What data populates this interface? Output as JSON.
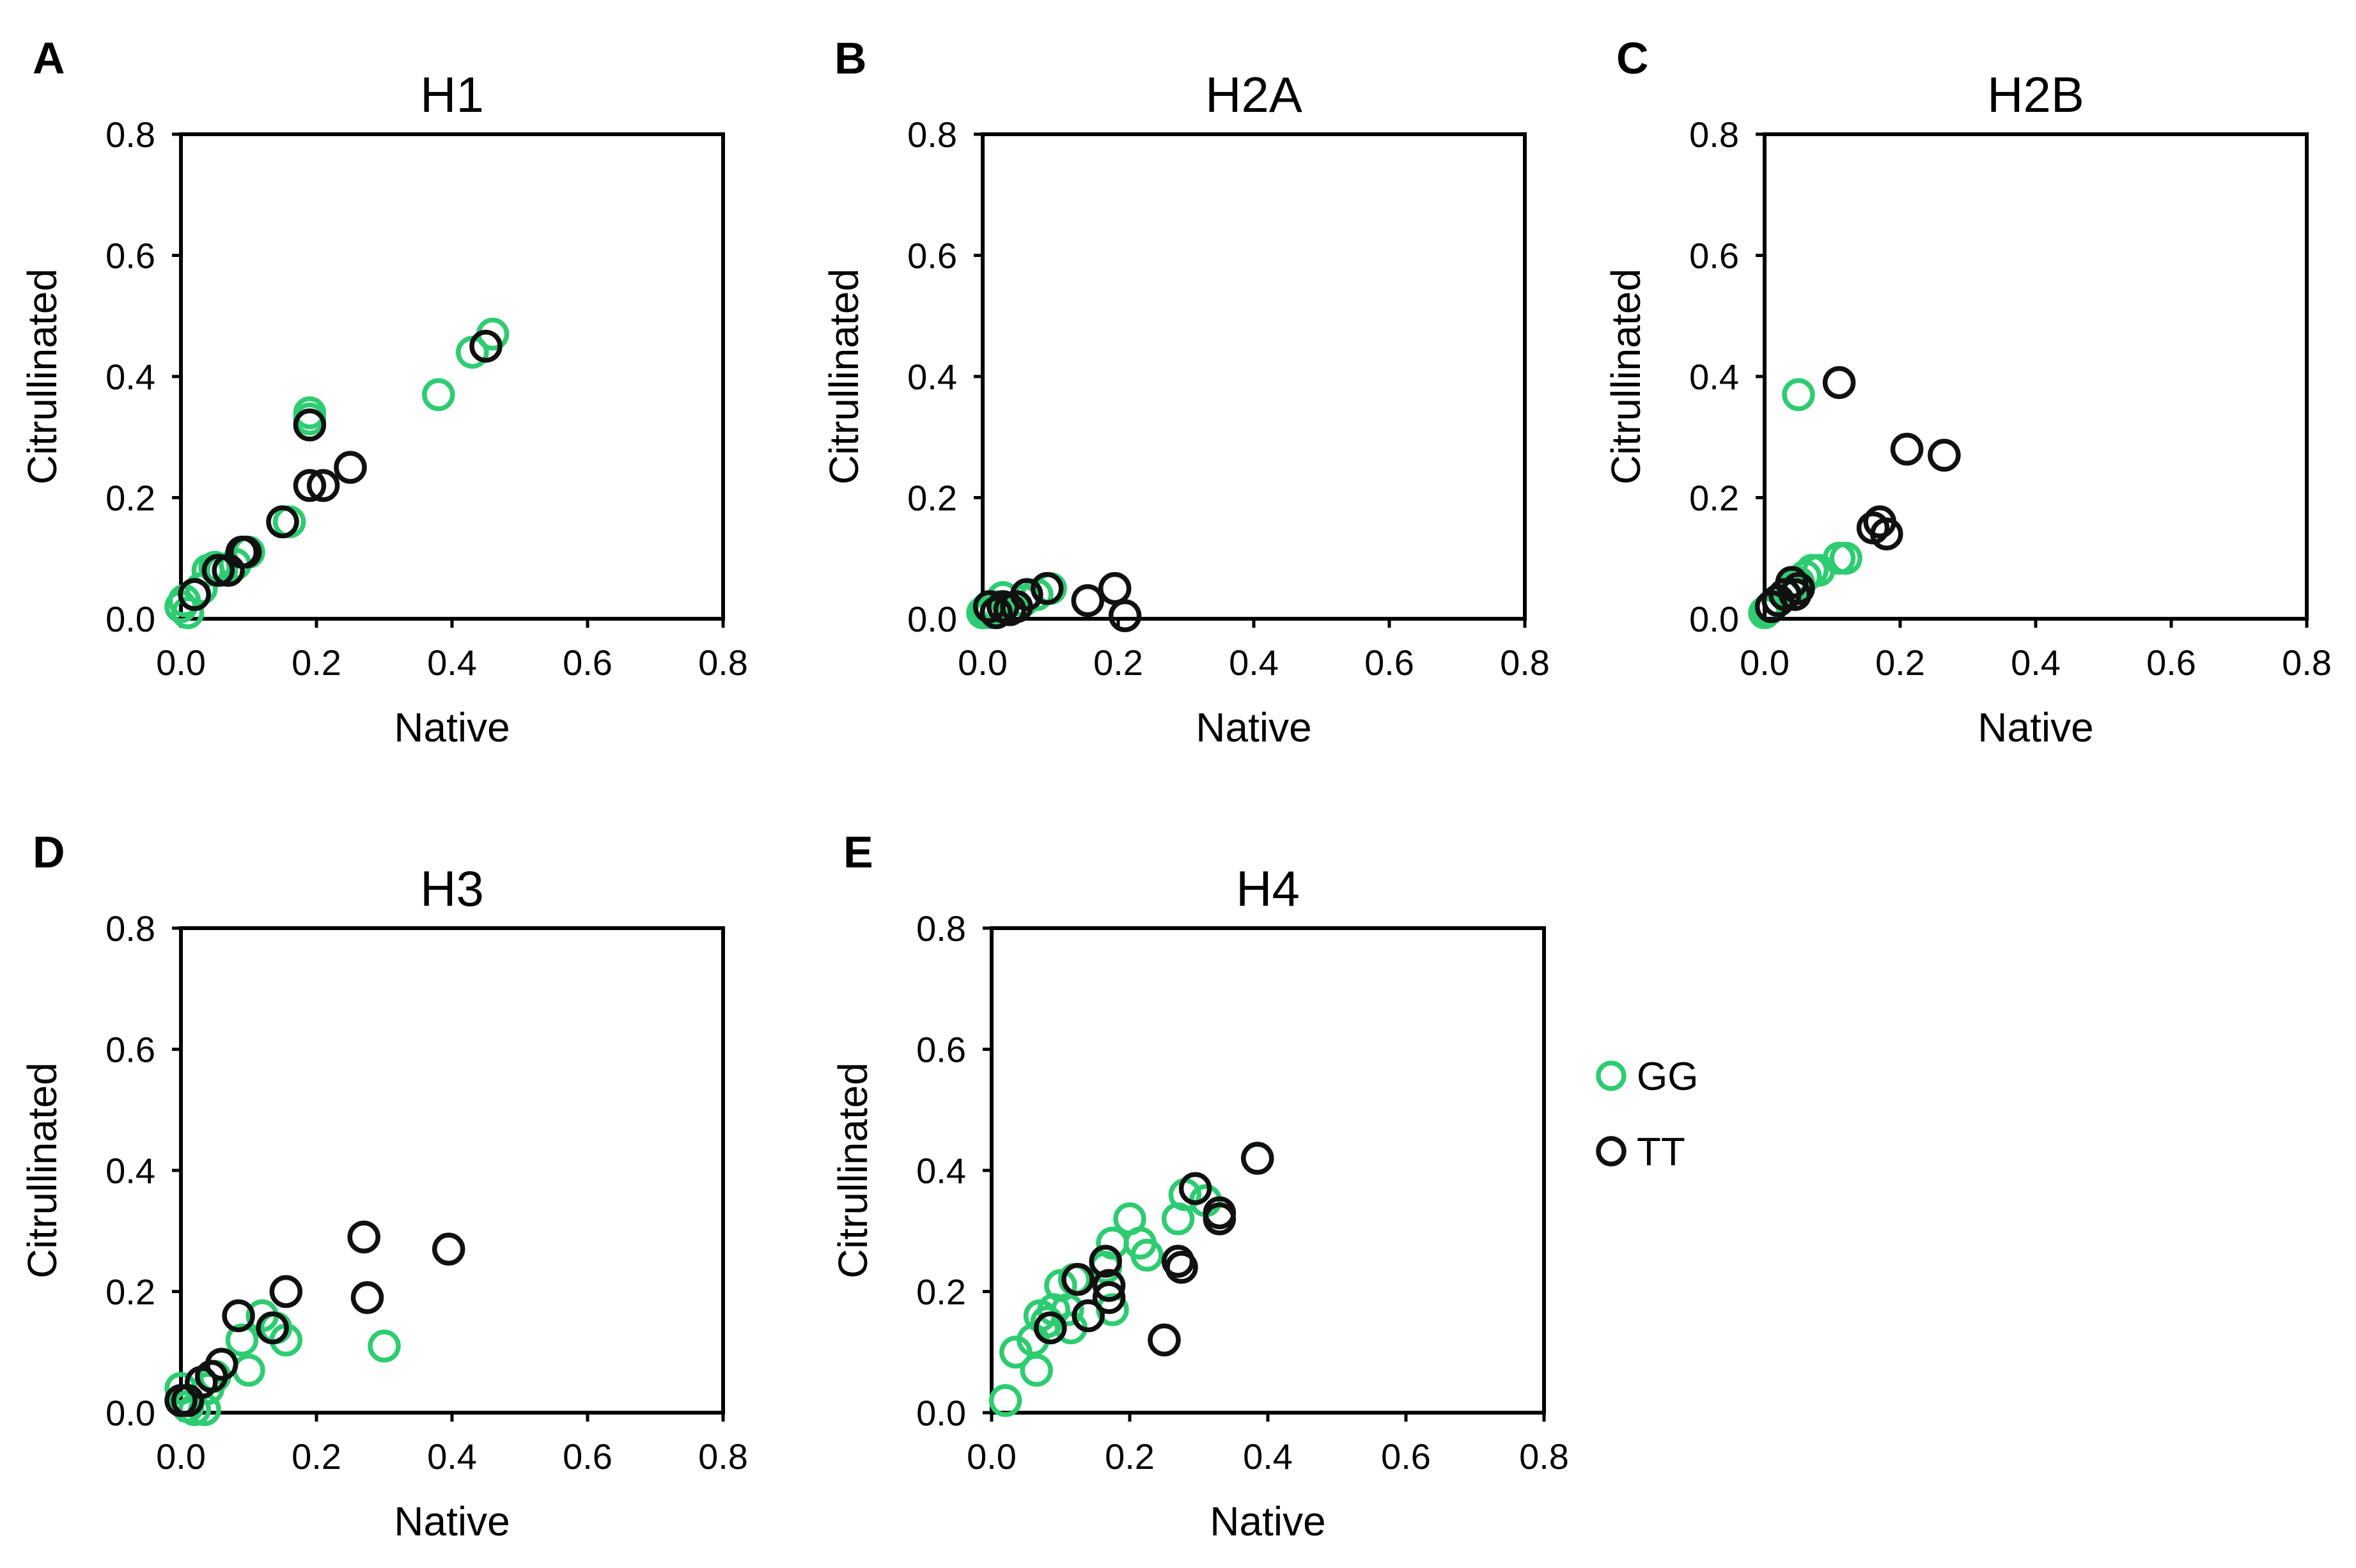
{
  "colors": {
    "GG": "#2ecc71",
    "TT": "#111111"
  },
  "legend": [
    {
      "key": "GG",
      "label": "GG"
    },
    {
      "key": "TT",
      "label": "TT"
    }
  ],
  "chart_data": [
    {
      "type": "scatter",
      "panel": "A",
      "title": "H1",
      "xlabel": "Native",
      "ylabel": "Citrullinated",
      "xlim": [
        0,
        0.8
      ],
      "ylim": [
        0,
        0.8
      ],
      "xticks": [
        "0.0",
        "0.2",
        "0.4",
        "0.6",
        "0.8"
      ],
      "yticks": [
        "0.0",
        "0.2",
        "0.4",
        "0.6",
        "0.8"
      ],
      "grid": false,
      "series": [
        {
          "name": "GG",
          "points": [
            [
              0.0,
              0.02
            ],
            [
              0.005,
              0.03
            ],
            [
              0.01,
              0.01
            ],
            [
              0.02,
              0.04
            ],
            [
              0.03,
              0.05
            ],
            [
              0.04,
              0.08
            ],
            [
              0.05,
              0.085
            ],
            [
              0.06,
              0.08
            ],
            [
              0.08,
              0.09
            ],
            [
              0.1,
              0.11
            ],
            [
              0.15,
              0.16
            ],
            [
              0.16,
              0.16
            ],
            [
              0.19,
              0.34
            ],
            [
              0.19,
              0.33
            ],
            [
              0.38,
              0.37
            ],
            [
              0.43,
              0.44
            ],
            [
              0.46,
              0.47
            ]
          ]
        },
        {
          "name": "TT",
          "points": [
            [
              0.02,
              0.04
            ],
            [
              0.055,
              0.08
            ],
            [
              0.07,
              0.08
            ],
            [
              0.09,
              0.11
            ],
            [
              0.095,
              0.11
            ],
            [
              0.15,
              0.16
            ],
            [
              0.19,
              0.22
            ],
            [
              0.19,
              0.32
            ],
            [
              0.21,
              0.22
            ],
            [
              0.25,
              0.25
            ],
            [
              0.45,
              0.45
            ]
          ]
        }
      ]
    },
    {
      "type": "scatter",
      "panel": "B",
      "title": "H2A",
      "xlabel": "Native",
      "ylabel": "Citrullinated",
      "xlim": [
        0,
        0.8
      ],
      "ylim": [
        0,
        0.8
      ],
      "xticks": [
        "0.0",
        "0.2",
        "0.4",
        "0.6",
        "0.8"
      ],
      "yticks": [
        "0.0",
        "0.2",
        "0.4",
        "0.6",
        "0.8"
      ],
      "grid": false,
      "series": [
        {
          "name": "GG",
          "points": [
            [
              0.0,
              0.01
            ],
            [
              0.005,
              0.015
            ],
            [
              0.01,
              0.01
            ],
            [
              0.02,
              0.02
            ],
            [
              0.03,
              0.035
            ],
            [
              0.04,
              0.015
            ],
            [
              0.06,
              0.03
            ],
            [
              0.08,
              0.04
            ],
            [
              0.1,
              0.05
            ]
          ]
        },
        {
          "name": "TT",
          "points": [
            [
              0.01,
              0.02
            ],
            [
              0.02,
              0.01
            ],
            [
              0.03,
              0.02
            ],
            [
              0.04,
              0.015
            ],
            [
              0.05,
              0.02
            ],
            [
              0.065,
              0.04
            ],
            [
              0.095,
              0.05
            ],
            [
              0.155,
              0.03
            ],
            [
              0.195,
              0.05
            ],
            [
              0.21,
              0.005
            ]
          ]
        }
      ]
    },
    {
      "type": "scatter",
      "panel": "C",
      "title": "H2B",
      "xlabel": "Native",
      "ylabel": "Citrullinated",
      "xlim": [
        0,
        0.8
      ],
      "ylim": [
        0,
        0.8
      ],
      "xticks": [
        "0.0",
        "0.2",
        "0.4",
        "0.6",
        "0.8"
      ],
      "yticks": [
        "0.0",
        "0.2",
        "0.4",
        "0.6",
        "0.8"
      ],
      "grid": false,
      "series": [
        {
          "name": "GG",
          "points": [
            [
              0.0,
              0.01
            ],
            [
              0.005,
              0.015
            ],
            [
              0.01,
              0.02
            ],
            [
              0.02,
              0.03
            ],
            [
              0.03,
              0.04
            ],
            [
              0.04,
              0.05
            ],
            [
              0.05,
              0.06
            ],
            [
              0.05,
              0.37
            ],
            [
              0.06,
              0.07
            ],
            [
              0.07,
              0.08
            ],
            [
              0.08,
              0.08
            ],
            [
              0.11,
              0.1
            ],
            [
              0.12,
              0.1
            ]
          ]
        },
        {
          "name": "TT",
          "points": [
            [
              0.01,
              0.02
            ],
            [
              0.02,
              0.03
            ],
            [
              0.03,
              0.04
            ],
            [
              0.04,
              0.06
            ],
            [
              0.045,
              0.04
            ],
            [
              0.05,
              0.05
            ],
            [
              0.11,
              0.39
            ],
            [
              0.16,
              0.15
            ],
            [
              0.17,
              0.16
            ],
            [
              0.18,
              0.14
            ],
            [
              0.21,
              0.28
            ],
            [
              0.265,
              0.27
            ]
          ]
        }
      ]
    },
    {
      "type": "scatter",
      "panel": "D",
      "title": "H3",
      "xlabel": "Native",
      "ylabel": "Citrullinated",
      "xlim": [
        0,
        0.8
      ],
      "ylim": [
        0,
        0.8
      ],
      "xticks": [
        "0.0",
        "0.2",
        "0.4",
        "0.6",
        "0.8"
      ],
      "yticks": [
        "0.0",
        "0.2",
        "0.4",
        "0.6",
        "0.8"
      ],
      "grid": false,
      "series": [
        {
          "name": "GG",
          "points": [
            [
              0.0,
              0.04
            ],
            [
              0.005,
              0.02
            ],
            [
              0.01,
              0.01
            ],
            [
              0.02,
              0.005
            ],
            [
              0.03,
              0.05
            ],
            [
              0.035,
              0.005
            ],
            [
              0.04,
              0.04
            ],
            [
              0.05,
              0.06
            ],
            [
              0.09,
              0.12
            ],
            [
              0.1,
              0.07
            ],
            [
              0.12,
              0.16
            ],
            [
              0.14,
              0.14
            ],
            [
              0.155,
              0.12
            ],
            [
              0.3,
              0.11
            ]
          ]
        },
        {
          "name": "TT",
          "points": [
            [
              0.0,
              0.02
            ],
            [
              0.01,
              0.02
            ],
            [
              0.03,
              0.05
            ],
            [
              0.045,
              0.06
            ],
            [
              0.06,
              0.08
            ],
            [
              0.085,
              0.16
            ],
            [
              0.135,
              0.14
            ],
            [
              0.155,
              0.2
            ],
            [
              0.27,
              0.29
            ],
            [
              0.275,
              0.19
            ],
            [
              0.395,
              0.27
            ]
          ]
        }
      ]
    },
    {
      "type": "scatter",
      "panel": "E",
      "title": "H4",
      "xlabel": "Native",
      "ylabel": "Citrullinated",
      "xlim": [
        0,
        0.8
      ],
      "ylim": [
        0,
        0.8
      ],
      "xticks": [
        "0.0",
        "0.2",
        "0.4",
        "0.6",
        "0.8"
      ],
      "yticks": [
        "0.0",
        "0.2",
        "0.4",
        "0.6",
        "0.8"
      ],
      "grid": false,
      "series": [
        {
          "name": "GG",
          "points": [
            [
              0.02,
              0.02
            ],
            [
              0.035,
              0.1
            ],
            [
              0.06,
              0.12
            ],
            [
              0.065,
              0.07
            ],
            [
              0.07,
              0.16
            ],
            [
              0.08,
              0.15
            ],
            [
              0.09,
              0.17
            ],
            [
              0.1,
              0.21
            ],
            [
              0.11,
              0.17
            ],
            [
              0.115,
              0.14
            ],
            [
              0.12,
              0.22
            ],
            [
              0.165,
              0.24
            ],
            [
              0.175,
              0.28
            ],
            [
              0.175,
              0.17
            ],
            [
              0.2,
              0.32
            ],
            [
              0.215,
              0.28
            ],
            [
              0.225,
              0.26
            ],
            [
              0.27,
              0.32
            ],
            [
              0.28,
              0.36
            ],
            [
              0.31,
              0.35
            ],
            [
              0.385,
              0.42
            ]
          ]
        },
        {
          "name": "TT",
          "points": [
            [
              0.085,
              0.14
            ],
            [
              0.125,
              0.22
            ],
            [
              0.14,
              0.16
            ],
            [
              0.165,
              0.25
            ],
            [
              0.17,
              0.19
            ],
            [
              0.17,
              0.21
            ],
            [
              0.25,
              0.12
            ],
            [
              0.27,
              0.25
            ],
            [
              0.275,
              0.24
            ],
            [
              0.295,
              0.37
            ],
            [
              0.33,
              0.33
            ],
            [
              0.33,
              0.32
            ],
            [
              0.385,
              0.42
            ]
          ]
        }
      ]
    }
  ]
}
